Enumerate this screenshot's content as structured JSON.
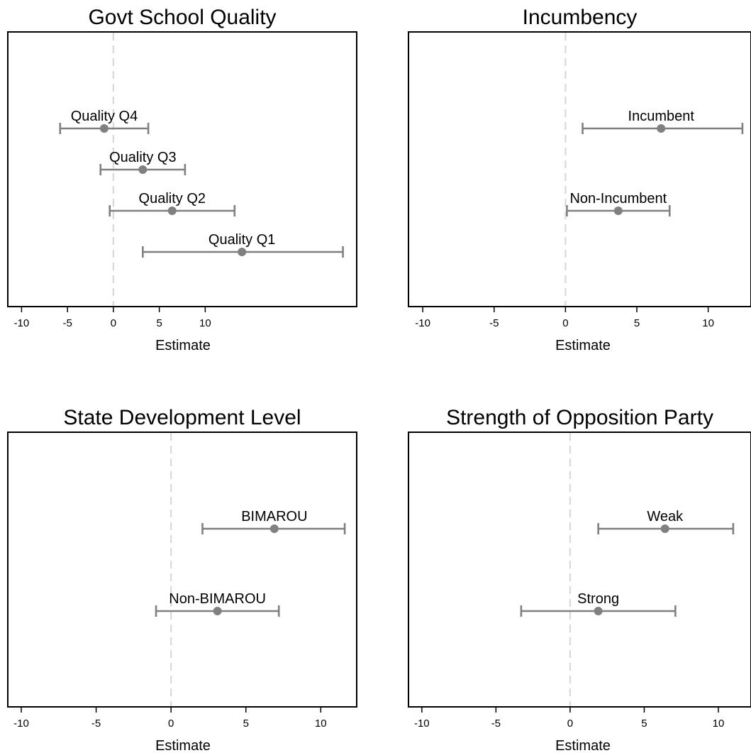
{
  "chart_data": [
    {
      "type": "scatter",
      "title": "Govt School Quality",
      "xlabel": "Estimate",
      "xticks": [
        -10,
        -5,
        0,
        5,
        10
      ],
      "xlim": [
        -11.5,
        26.5
      ],
      "reference_line": 0,
      "points": [
        {
          "label": "Quality Q4",
          "estimate": -1.0,
          "lower": -5.8,
          "upper": 3.8
        },
        {
          "label": "Quality Q3",
          "estimate": 3.2,
          "lower": -1.4,
          "upper": 7.8
        },
        {
          "label": "Quality Q2",
          "estimate": 6.4,
          "lower": -0.4,
          "upper": 13.2
        },
        {
          "label": "Quality Q1",
          "estimate": 14.0,
          "lower": 3.2,
          "upper": 25.0
        }
      ]
    },
    {
      "type": "scatter",
      "title": "Incumbency",
      "xlabel": "Estimate",
      "xticks": [
        -10,
        -5,
        0,
        5,
        10
      ],
      "xlim": [
        -11,
        13
      ],
      "reference_line": 0,
      "points": [
        {
          "label": "Incumbent",
          "estimate": 6.7,
          "lower": 1.2,
          "upper": 12.4
        },
        {
          "label": "Non-Incumbent",
          "estimate": 3.7,
          "lower": 0.1,
          "upper": 7.3
        }
      ]
    },
    {
      "type": "scatter",
      "title": "State Development Level",
      "xlabel": "Estimate",
      "xticks": [
        -10,
        -5,
        0,
        5,
        10
      ],
      "xlim": [
        -10.9,
        12.4
      ],
      "reference_line": 0,
      "points": [
        {
          "label": "BIMAROU",
          "estimate": 6.9,
          "lower": 2.1,
          "upper": 11.6
        },
        {
          "label": "Non-BIMAROU",
          "estimate": 3.1,
          "lower": -1.0,
          "upper": 7.2
        }
      ]
    },
    {
      "type": "scatter",
      "title": "Strength of Opposition Party",
      "xlabel": "Estimate",
      "xticks": [
        -10,
        -5,
        0,
        5,
        10
      ],
      "xlim": [
        -10.9,
        12.2
      ],
      "reference_line": 0,
      "points": [
        {
          "label": "Weak",
          "estimate": 6.4,
          "lower": 1.9,
          "upper": 11.0
        },
        {
          "label": "Strong",
          "estimate": 1.9,
          "lower": -3.3,
          "upper": 7.1
        }
      ]
    }
  ],
  "colors": {
    "marker": "#808080",
    "reference_line": "#d9d9d9",
    "frame": "#000000"
  }
}
